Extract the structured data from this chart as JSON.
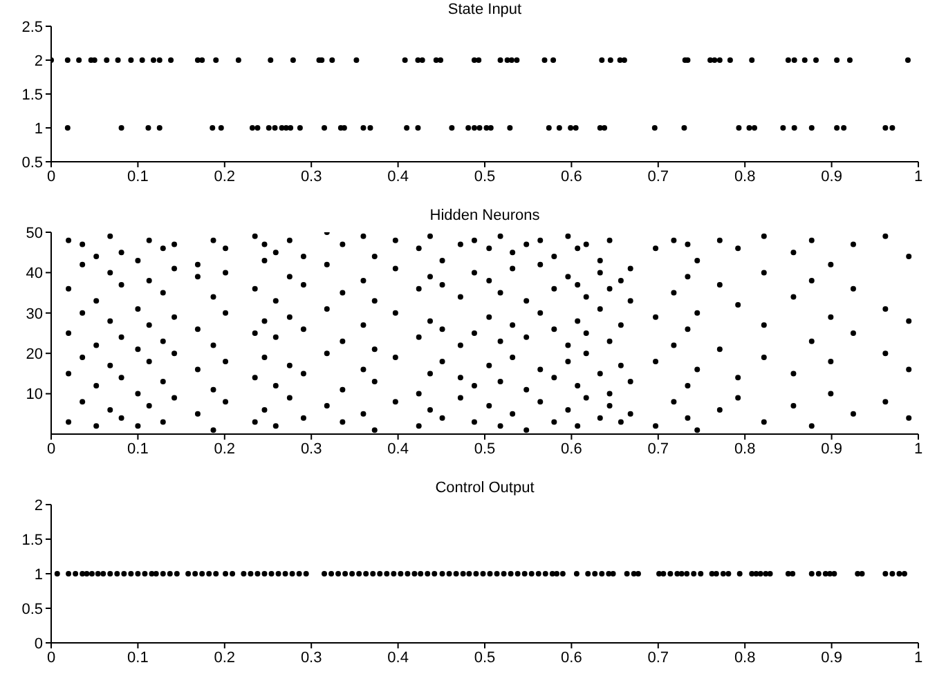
{
  "chart_data": [
    {
      "type": "scatter",
      "title": "State Input",
      "xlim": [
        0,
        1
      ],
      "xticks": [
        0,
        0.1,
        0.2,
        0.3,
        0.4,
        0.5,
        0.6,
        0.7,
        0.8,
        0.9,
        1
      ],
      "ylim": [
        0.5,
        2.5
      ],
      "yticks": [
        0.5,
        1,
        1.5,
        2,
        2.5
      ],
      "marker": "circle",
      "grid": false,
      "legend": false,
      "series": [
        {
          "color": "#000000",
          "x": [
            0.0,
            0.019,
            0.032,
            0.046,
            0.05,
            0.064,
            0.077,
            0.092,
            0.105,
            0.118,
            0.125,
            0.138,
            0.169,
            0.174,
            0.19,
            0.216,
            0.253,
            0.279,
            0.309,
            0.312,
            0.324,
            0.352,
            0.408,
            0.423,
            0.428,
            0.444,
            0.449,
            0.488,
            0.493,
            0.518,
            0.526,
            0.531,
            0.537,
            0.569,
            0.579,
            0.635,
            0.645,
            0.656,
            0.661,
            0.731,
            0.734,
            0.76,
            0.765,
            0.771,
            0.783,
            0.808,
            0.85,
            0.857,
            0.869,
            0.882,
            0.906,
            0.921,
            0.988
          ],
          "values": [
            2,
            2,
            2,
            2,
            2,
            2,
            2,
            2,
            2,
            2,
            2,
            2,
            2,
            2,
            2,
            2,
            2,
            2,
            2,
            2,
            2,
            2,
            2,
            2,
            2,
            2,
            2,
            2,
            2,
            2,
            2,
            2,
            2,
            2,
            2,
            2,
            2,
            2,
            2,
            2,
            2,
            2,
            2,
            2,
            2,
            2,
            2,
            2,
            2,
            2,
            2,
            2,
            2
          ]
        },
        {
          "color": "#000000",
          "x": [
            0.019,
            0.081,
            0.112,
            0.125,
            0.186,
            0.196,
            0.232,
            0.238,
            0.251,
            0.258,
            0.266,
            0.271,
            0.276,
            0.287,
            0.315,
            0.334,
            0.338,
            0.36,
            0.368,
            0.41,
            0.423,
            0.462,
            0.481,
            0.488,
            0.494,
            0.502,
            0.507,
            0.529,
            0.574,
            0.586,
            0.599,
            0.605,
            0.633,
            0.638,
            0.696,
            0.73,
            0.793,
            0.805,
            0.811,
            0.844,
            0.857,
            0.877,
            0.906,
            0.914,
            0.962,
            0.97
          ],
          "values": [
            1,
            1,
            1,
            1,
            1,
            1,
            1,
            1,
            1,
            1,
            1,
            1,
            1,
            1,
            1,
            1,
            1,
            1,
            1,
            1,
            1,
            1,
            1,
            1,
            1,
            1,
            1,
            1,
            1,
            1,
            1,
            1,
            1,
            1,
            1,
            1,
            1,
            1,
            1,
            1,
            1,
            1,
            1,
            1,
            1,
            1
          ]
        }
      ]
    },
    {
      "type": "scatter",
      "title": "Hidden Neurons",
      "xlim": [
        0,
        1
      ],
      "xticks": [
        0,
        0.1,
        0.2,
        0.3,
        0.4,
        0.5,
        0.6,
        0.7,
        0.8,
        0.9,
        1
      ],
      "ylim": [
        0,
        50
      ],
      "yticks": [
        10,
        20,
        30,
        40,
        50
      ],
      "marker": "circle",
      "grid": false,
      "legend": false,
      "series": [
        {
          "color": "#000000",
          "x": [
            0.02,
            0.02,
            0.02,
            0.02,
            0.02,
            0.036,
            0.036,
            0.036,
            0.036,
            0.036,
            0.052,
            0.052,
            0.052,
            0.052,
            0.052,
            0.068,
            0.068,
            0.068,
            0.068,
            0.068,
            0.081,
            0.081,
            0.081,
            0.081,
            0.081,
            0.1,
            0.1,
            0.1,
            0.1,
            0.1,
            0.113,
            0.113,
            0.113,
            0.113,
            0.113,
            0.129,
            0.129,
            0.129,
            0.129,
            0.129,
            0.142,
            0.142,
            0.142,
            0.142,
            0.142,
            0.169,
            0.169,
            0.169,
            0.169,
            0.169,
            0.187,
            0.187,
            0.187,
            0.187,
            0.187,
            0.201,
            0.201,
            0.201,
            0.201,
            0.201,
            0.235,
            0.235,
            0.235,
            0.235,
            0.235,
            0.246,
            0.246,
            0.246,
            0.246,
            0.246,
            0.259,
            0.259,
            0.259,
            0.259,
            0.259,
            0.275,
            0.275,
            0.275,
            0.275,
            0.275,
            0.291,
            0.291,
            0.291,
            0.291,
            0.291,
            0.318,
            0.318,
            0.318,
            0.318,
            0.318,
            0.336,
            0.336,
            0.336,
            0.336,
            0.336,
            0.36,
            0.36,
            0.36,
            0.36,
            0.36,
            0.373,
            0.373,
            0.373,
            0.373,
            0.373,
            0.397,
            0.397,
            0.397,
            0.397,
            0.397,
            0.424,
            0.424,
            0.424,
            0.424,
            0.424,
            0.437,
            0.437,
            0.437,
            0.437,
            0.437,
            0.451,
            0.451,
            0.451,
            0.451,
            0.451,
            0.472,
            0.472,
            0.472,
            0.472,
            0.472,
            0.488,
            0.488,
            0.488,
            0.488,
            0.488,
            0.505,
            0.505,
            0.505,
            0.505,
            0.505,
            0.518,
            0.518,
            0.518,
            0.518,
            0.518,
            0.532,
            0.532,
            0.532,
            0.532,
            0.532,
            0.548,
            0.548,
            0.548,
            0.548,
            0.548,
            0.564,
            0.564,
            0.564,
            0.564,
            0.564,
            0.58,
            0.58,
            0.58,
            0.58,
            0.58,
            0.596,
            0.596,
            0.596,
            0.596,
            0.596,
            0.607,
            0.607,
            0.607,
            0.607,
            0.607,
            0.617,
            0.617,
            0.617,
            0.617,
            0.617,
            0.633,
            0.633,
            0.633,
            0.633,
            0.633,
            0.644,
            0.644,
            0.644,
            0.644,
            0.644,
            0.657,
            0.657,
            0.657,
            0.657,
            0.668,
            0.668,
            0.668,
            0.668,
            0.697,
            0.697,
            0.697,
            0.697,
            0.718,
            0.718,
            0.718,
            0.718,
            0.734,
            0.734,
            0.734,
            0.734,
            0.734,
            0.745,
            0.745,
            0.745,
            0.745,
            0.771,
            0.771,
            0.771,
            0.771,
            0.792,
            0.792,
            0.792,
            0.792,
            0.822,
            0.822,
            0.822,
            0.822,
            0.822,
            0.856,
            0.856,
            0.856,
            0.856,
            0.877,
            0.877,
            0.877,
            0.877,
            0.899,
            0.899,
            0.899,
            0.899,
            0.925,
            0.925,
            0.925,
            0.925,
            0.962,
            0.962,
            0.962,
            0.962,
            0.989,
            0.989,
            0.989,
            0.989
          ],
          "values": [
            3,
            15,
            25,
            36,
            48,
            8,
            19,
            30,
            42,
            47,
            2,
            12,
            22,
            33,
            44,
            6,
            17,
            28,
            40,
            49,
            4,
            14,
            24,
            37,
            45,
            2,
            10,
            21,
            31,
            43,
            7,
            18,
            27,
            38,
            48,
            3,
            13,
            23,
            35,
            46,
            9,
            20,
            29,
            41,
            47,
            5,
            16,
            26,
            39,
            42,
            1,
            11,
            22,
            34,
            48,
            8,
            18,
            30,
            40,
            46,
            3,
            14,
            25,
            36,
            49,
            6,
            19,
            28,
            43,
            47,
            2,
            12,
            24,
            33,
            45,
            9,
            17,
            29,
            39,
            48,
            4,
            15,
            26,
            37,
            44,
            7,
            20,
            31,
            42,
            50,
            3,
            11,
            23,
            35,
            47,
            5,
            16,
            27,
            38,
            49,
            1,
            13,
            21,
            33,
            44,
            8,
            19,
            30,
            41,
            48,
            2,
            10,
            24,
            36,
            46,
            6,
            15,
            28,
            39,
            49,
            4,
            18,
            26,
            37,
            43,
            9,
            14,
            22,
            34,
            47,
            3,
            12,
            25,
            40,
            48,
            7,
            17,
            29,
            38,
            46,
            2,
            13,
            23,
            35,
            49,
            5,
            19,
            27,
            41,
            45,
            1,
            11,
            24,
            33,
            47,
            8,
            16,
            30,
            42,
            48,
            3,
            14,
            26,
            36,
            44,
            6,
            18,
            22,
            39,
            49,
            2,
            12,
            28,
            37,
            46,
            9,
            20,
            25,
            34,
            47,
            4,
            15,
            31,
            40,
            43,
            7,
            10,
            23,
            36,
            48,
            3,
            17,
            27,
            38,
            5,
            13,
            33,
            41,
            2,
            18,
            29,
            46,
            8,
            22,
            35,
            48,
            4,
            12,
            26,
            39,
            47,
            1,
            16,
            30,
            43,
            6,
            21,
            37,
            48,
            9,
            14,
            32,
            46,
            3,
            19,
            27,
            40,
            49,
            7,
            15,
            34,
            45,
            2,
            23,
            38,
            48,
            10,
            18,
            29,
            42,
            5,
            25,
            36,
            47,
            8,
            20,
            31,
            49,
            4,
            16,
            28,
            44
          ]
        }
      ]
    },
    {
      "type": "scatter",
      "title": "Control Output",
      "xlim": [
        0,
        1
      ],
      "xticks": [
        0,
        0.1,
        0.2,
        0.3,
        0.4,
        0.5,
        0.6,
        0.7,
        0.8,
        0.9,
        1
      ],
      "ylim": [
        0,
        2
      ],
      "yticks": [
        0,
        0.5,
        1,
        1.5,
        2
      ],
      "marker": "circle",
      "grid": false,
      "legend": false,
      "series": [
        {
          "color": "#000000",
          "x": [
            0.007,
            0.02,
            0.028,
            0.036,
            0.041,
            0.047,
            0.054,
            0.06,
            0.068,
            0.076,
            0.084,
            0.092,
            0.1,
            0.108,
            0.116,
            0.121,
            0.129,
            0.137,
            0.145,
            0.158,
            0.166,
            0.174,
            0.182,
            0.19,
            0.201,
            0.209,
            0.222,
            0.23,
            0.238,
            0.246,
            0.254,
            0.262,
            0.27,
            0.278,
            0.286,
            0.294,
            0.315,
            0.323,
            0.331,
            0.339,
            0.347,
            0.355,
            0.363,
            0.371,
            0.379,
            0.387,
            0.395,
            0.403,
            0.411,
            0.419,
            0.426,
            0.434,
            0.442,
            0.451,
            0.459,
            0.467,
            0.475,
            0.482,
            0.49,
            0.498,
            0.506,
            0.514,
            0.522,
            0.53,
            0.538,
            0.546,
            0.554,
            0.562,
            0.57,
            0.578,
            0.583,
            0.59,
            0.606,
            0.619,
            0.627,
            0.635,
            0.643,
            0.648,
            0.664,
            0.672,
            0.677,
            0.701,
            0.706,
            0.714,
            0.722,
            0.727,
            0.733,
            0.741,
            0.749,
            0.762,
            0.767,
            0.775,
            0.781,
            0.794,
            0.808,
            0.813,
            0.818,
            0.824,
            0.829,
            0.85,
            0.855,
            0.877,
            0.885,
            0.893,
            0.898,
            0.903,
            0.93,
            0.935,
            0.962,
            0.97,
            0.978,
            0.984
          ],
          "values": [
            1,
            1,
            1,
            1,
            1,
            1,
            1,
            1,
            1,
            1,
            1,
            1,
            1,
            1,
            1,
            1,
            1,
            1,
            1,
            1,
            1,
            1,
            1,
            1,
            1,
            1,
            1,
            1,
            1,
            1,
            1,
            1,
            1,
            1,
            1,
            1,
            1,
            1,
            1,
            1,
            1,
            1,
            1,
            1,
            1,
            1,
            1,
            1,
            1,
            1,
            1,
            1,
            1,
            1,
            1,
            1,
            1,
            1,
            1,
            1,
            1,
            1,
            1,
            1,
            1,
            1,
            1,
            1,
            1,
            1,
            1,
            1,
            1,
            1,
            1,
            1,
            1,
            1,
            1,
            1,
            1,
            1,
            1,
            1,
            1,
            1,
            1,
            1,
            1,
            1,
            1,
            1,
            1,
            1,
            1,
            1,
            1,
            1,
            1,
            1,
            1,
            1,
            1,
            1,
            1,
            1,
            1,
            1,
            1,
            1,
            1,
            1
          ]
        }
      ]
    }
  ]
}
